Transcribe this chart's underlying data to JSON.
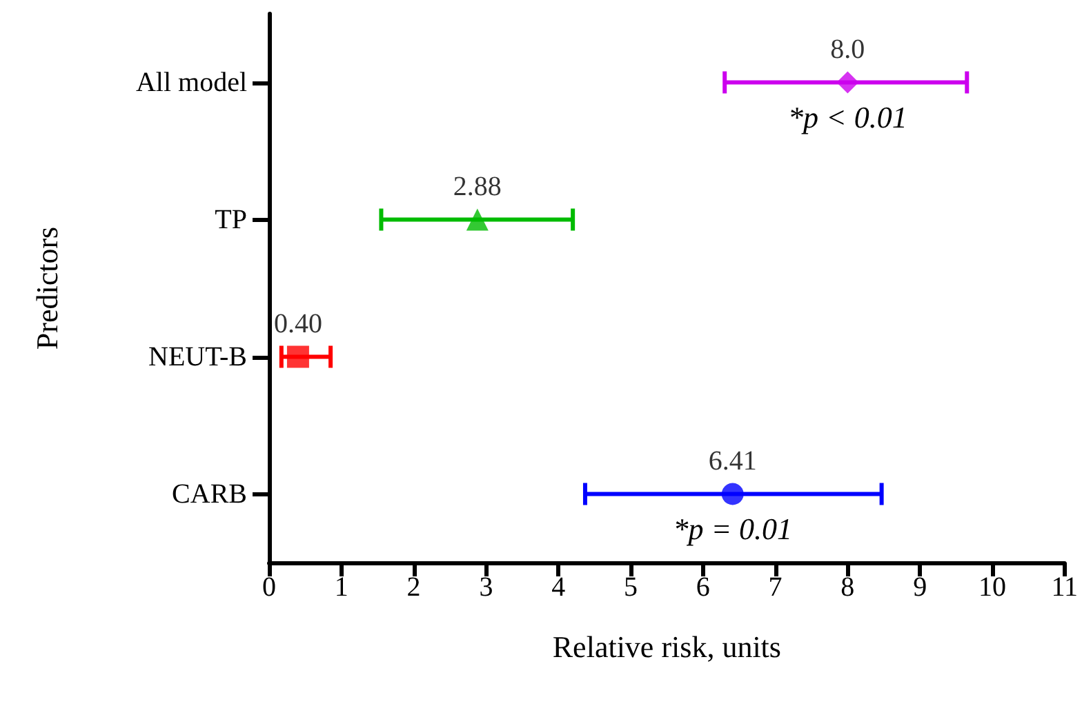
{
  "chart_data": {
    "type": "scatter",
    "orientation": "horizontal",
    "xlabel": "Relative risk, units",
    "ylabel": "Predictors",
    "categories": [
      "All model",
      "TP",
      "NEUT-B",
      "CARB"
    ],
    "series": [
      {
        "color": "#cc00ee",
        "marker": "diamond",
        "values": [
          8.0,
          null,
          null,
          null
        ],
        "errors": [
          [
            6.3,
            9.65
          ],
          null,
          null,
          null
        ],
        "value_labels": [
          "8.0",
          null,
          null,
          null
        ]
      },
      {
        "color": "#00bb00",
        "marker": "triangle",
        "values": [
          null,
          2.88,
          null,
          null
        ],
        "errors": [
          null,
          [
            1.55,
            4.2
          ],
          null,
          null
        ],
        "value_labels": [
          null,
          "2.88",
          null,
          null
        ]
      },
      {
        "color": "#ff0000",
        "marker": "square",
        "values": [
          null,
          null,
          0.4,
          null
        ],
        "errors": [
          null,
          null,
          [
            0.17,
            0.85
          ],
          null
        ],
        "value_labels": [
          null,
          null,
          "0.40",
          null
        ]
      },
      {
        "color": "#0000ff",
        "marker": "circle",
        "values": [
          null,
          null,
          null,
          6.41
        ],
        "errors": [
          null,
          null,
          null,
          [
            4.37,
            8.47
          ]
        ],
        "value_labels": [
          null,
          null,
          null,
          "6.41"
        ]
      }
    ],
    "annotations": [
      {
        "text": "*p < 0.01",
        "x": 8.0,
        "y": "All model"
      },
      {
        "text": "*p = 0.01",
        "x": 6.41,
        "y": "CARB"
      }
    ],
    "xlim": [
      0,
      11
    ],
    "xticks": [
      0,
      1,
      2,
      3,
      4,
      5,
      6,
      7,
      8,
      9,
      10,
      11
    ],
    "grid": false
  }
}
